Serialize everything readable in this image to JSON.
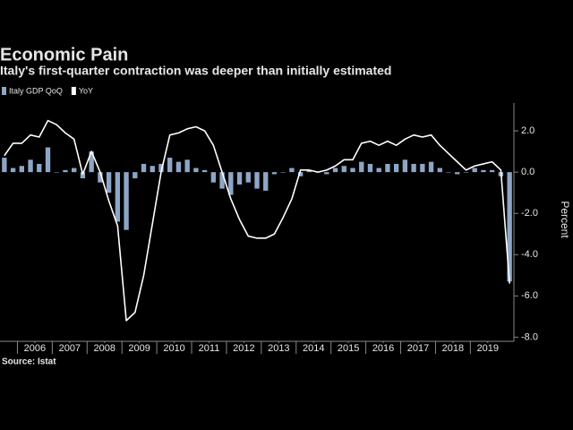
{
  "chart_data": {
    "type": "combo",
    "title": "Economic Pain",
    "subtitle": "Italy's first-quarter contraction was deeper than initially estimated",
    "source": "Source: Istat",
    "y_axis_label": "Percent",
    "legend": "top-left",
    "x": [
      2005.625,
      2005.875,
      2006.125,
      2006.375,
      2006.625,
      2006.875,
      2007.125,
      2007.375,
      2007.625,
      2007.875,
      2008.125,
      2008.375,
      2008.625,
      2008.875,
      2009.125,
      2009.375,
      2009.625,
      2009.875,
      2010.125,
      2010.375,
      2010.625,
      2010.875,
      2011.125,
      2011.375,
      2011.625,
      2011.875,
      2012.125,
      2012.375,
      2012.625,
      2012.875,
      2013.125,
      2013.375,
      2013.625,
      2013.875,
      2014.125,
      2014.375,
      2014.625,
      2014.875,
      2015.125,
      2015.375,
      2015.625,
      2015.875,
      2016.125,
      2016.375,
      2016.625,
      2016.875,
      2017.125,
      2017.375,
      2017.625,
      2017.875,
      2018.125,
      2018.375,
      2018.625,
      2018.875,
      2019.125,
      2019.375,
      2019.625,
      2019.875,
      2020.125
    ],
    "xlim": [
      2005.5,
      2020.25
    ],
    "xticks": [
      {
        "value": 2006.5,
        "label": "2006"
      },
      {
        "value": 2007.5,
        "label": "2007"
      },
      {
        "value": 2008.5,
        "label": "2008"
      },
      {
        "value": 2009.5,
        "label": "2009"
      },
      {
        "value": 2010.5,
        "label": "2010"
      },
      {
        "value": 2011.5,
        "label": "2011"
      },
      {
        "value": 2012.5,
        "label": "2012"
      },
      {
        "value": 2013.5,
        "label": "2013"
      },
      {
        "value": 2014.5,
        "label": "2014"
      },
      {
        "value": 2015.5,
        "label": "2015"
      },
      {
        "value": 2016.5,
        "label": "2016"
      },
      {
        "value": 2017.5,
        "label": "2017"
      },
      {
        "value": 2018.5,
        "label": "2018"
      },
      {
        "value": 2019.5,
        "label": "2019"
      }
    ],
    "ylim": [
      -8.2,
      3.35
    ],
    "yticks": [
      {
        "value": 2,
        "label": "2.0"
      },
      {
        "value": 0,
        "label": "0.0"
      },
      {
        "value": -2,
        "label": "-2.0"
      },
      {
        "value": -4,
        "label": "-4.0"
      },
      {
        "value": -6,
        "label": "-6.0"
      },
      {
        "value": -8,
        "label": "-8.0"
      }
    ],
    "series": [
      {
        "name": "Italy GDP QoQ",
        "type": "bar",
        "color": "#8ea6c6",
        "values": [
          0.7,
          0.2,
          0.3,
          0.6,
          0.4,
          1.2,
          0.0,
          0.1,
          0.2,
          -0.3,
          1.0,
          -0.5,
          -1.0,
          -2.4,
          -2.8,
          -0.3,
          0.4,
          0.3,
          0.4,
          0.7,
          0.5,
          0.6,
          0.2,
          0.1,
          -0.5,
          -0.8,
          -1.1,
          -0.6,
          -0.5,
          -0.8,
          -0.9,
          -0.1,
          0.0,
          0.2,
          -0.2,
          0.1,
          0.0,
          -0.1,
          0.2,
          0.3,
          0.2,
          0.5,
          0.4,
          0.2,
          0.4,
          0.4,
          0.6,
          0.4,
          0.4,
          0.5,
          0.2,
          0.0,
          -0.1,
          0.0,
          0.2,
          0.1,
          0.1,
          -0.2,
          -5.3
        ]
      },
      {
        "name": "YoY",
        "type": "line",
        "color": "#ffffff",
        "values": [
          0.8,
          1.4,
          1.4,
          1.8,
          1.7,
          2.5,
          2.3,
          1.9,
          1.6,
          -0.1,
          1.0,
          0.0,
          -1.4,
          -2.6,
          -7.2,
          -6.8,
          -5.0,
          -2.5,
          0.0,
          1.8,
          1.9,
          2.1,
          2.2,
          2.0,
          1.3,
          0.0,
          -1.3,
          -2.3,
          -3.1,
          -3.2,
          -3.2,
          -3.0,
          -2.2,
          -1.3,
          0.1,
          0.1,
          0.0,
          0.1,
          0.3,
          0.6,
          0.6,
          1.4,
          1.5,
          1.3,
          1.5,
          1.3,
          1.6,
          1.8,
          1.7,
          1.8,
          1.3,
          0.9,
          0.5,
          0.1,
          0.3,
          0.4,
          0.5,
          0.1,
          -5.4
        ]
      }
    ]
  }
}
